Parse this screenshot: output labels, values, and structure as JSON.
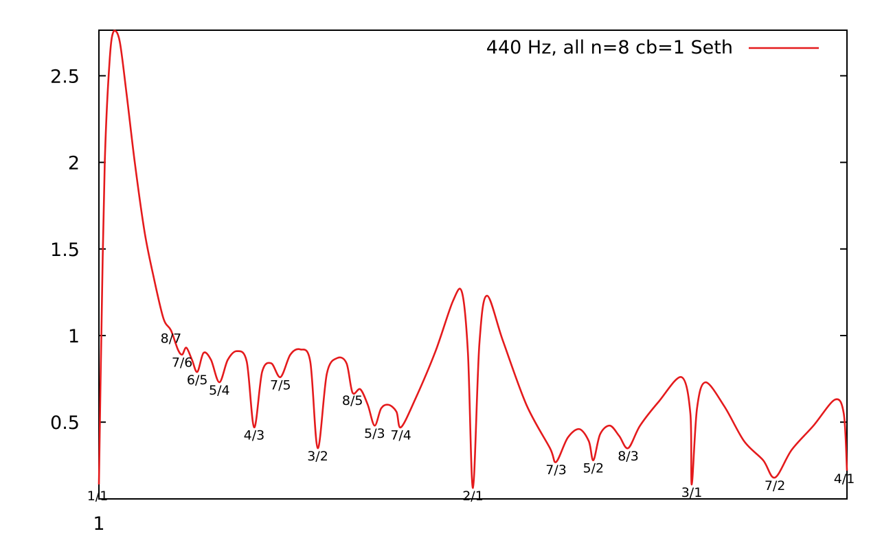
{
  "chart_data": {
    "type": "line",
    "title": "",
    "xlabel": "",
    "ylabel": "",
    "x_scale": "log",
    "xlim": [
      1,
      4
    ],
    "ylim": [
      0.0568,
      2.7632
    ],
    "grid": false,
    "legend_position": "top-right",
    "color": "#e41a1c",
    "x_tick_labels": [
      "1"
    ],
    "y_tick_labels": [
      "0.5",
      "1",
      "1.5",
      "2",
      "2.5"
    ],
    "y_ticks": [
      0.5,
      1,
      1.5,
      2,
      2.5
    ],
    "series": [
      {
        "name": "440 Hz, all n=8 cb=1 Seth",
        "points": [
          [
            1.0,
            0.14
          ],
          [
            1.0045,
            1.0
          ],
          [
            1.0109,
            2.0
          ],
          [
            1.0203,
            2.6
          ],
          [
            1.0282,
            2.76
          ],
          [
            1.0392,
            2.7
          ],
          [
            1.0524,
            2.4
          ],
          [
            1.0687,
            2.0
          ],
          [
            1.0882,
            1.6
          ],
          [
            1.1058,
            1.35
          ],
          [
            1.1269,
            1.1
          ],
          [
            1.1429,
            1.03
          ],
          [
            1.1575,
            0.92
          ],
          [
            1.1667,
            0.89
          ],
          [
            1.1759,
            0.93
          ],
          [
            1.1882,
            0.86
          ],
          [
            1.2,
            0.79
          ],
          [
            1.214,
            0.9
          ],
          [
            1.2308,
            0.86
          ],
          [
            1.25,
            0.73
          ],
          [
            1.2697,
            0.86
          ],
          [
            1.2916,
            0.91
          ],
          [
            1.3151,
            0.85
          ],
          [
            1.3333,
            0.47
          ],
          [
            1.3531,
            0.79
          ],
          [
            1.3762,
            0.84
          ],
          [
            1.4,
            0.76
          ],
          [
            1.4258,
            0.89
          ],
          [
            1.4522,
            0.92
          ],
          [
            1.4794,
            0.85
          ],
          [
            1.5,
            0.35
          ],
          [
            1.5256,
            0.78
          ],
          [
            1.5553,
            0.87
          ],
          [
            1.5823,
            0.84
          ],
          [
            1.6,
            0.67
          ],
          [
            1.6231,
            0.69
          ],
          [
            1.6459,
            0.6
          ],
          [
            1.6667,
            0.48
          ],
          [
            1.6873,
            0.58
          ],
          [
            1.7105,
            0.6
          ],
          [
            1.7357,
            0.56
          ],
          [
            1.75,
            0.47
          ],
          [
            1.7965,
            0.63
          ],
          [
            1.8661,
            0.91
          ],
          [
            1.9274,
            1.2
          ],
          [
            1.9597,
            1.25
          ],
          [
            1.9815,
            0.9
          ],
          [
            2.0,
            0.12
          ],
          [
            2.0239,
            0.95
          ],
          [
            2.0524,
            1.23
          ],
          [
            2.1142,
            0.97
          ],
          [
            2.2084,
            0.6
          ],
          [
            2.3068,
            0.35
          ],
          [
            2.3333,
            0.27
          ],
          [
            2.384,
            0.41
          ],
          [
            2.4358,
            0.46
          ],
          [
            2.4791,
            0.39
          ],
          [
            2.5,
            0.28
          ],
          [
            2.5314,
            0.43
          ],
          [
            2.5775,
            0.48
          ],
          [
            2.6227,
            0.42
          ],
          [
            2.6667,
            0.35
          ],
          [
            2.7261,
            0.48
          ],
          [
            2.8232,
            0.62
          ],
          [
            2.9437,
            0.76
          ],
          [
            2.9924,
            0.55
          ],
          [
            3.0,
            0.14
          ],
          [
            3.0295,
            0.58
          ],
          [
            3.0777,
            0.73
          ],
          [
            3.1876,
            0.59
          ],
          [
            3.3058,
            0.39
          ],
          [
            3.4246,
            0.28
          ],
          [
            3.5,
            0.18
          ],
          [
            3.6105,
            0.34
          ],
          [
            3.7595,
            0.48
          ],
          [
            3.9122,
            0.63
          ],
          [
            3.9762,
            0.55
          ],
          [
            4.0,
            0.22
          ]
        ]
      }
    ],
    "annotations": [
      {
        "text": "1/1",
        "x": 1.0,
        "y": 0.14
      },
      {
        "text": "8/7",
        "x": 1.1429,
        "y": 1.03
      },
      {
        "text": "7/6",
        "x": 1.1667,
        "y": 0.89
      },
      {
        "text": "6/5",
        "x": 1.2,
        "y": 0.79
      },
      {
        "text": "5/4",
        "x": 1.25,
        "y": 0.73
      },
      {
        "text": "4/3",
        "x": 1.3333,
        "y": 0.47
      },
      {
        "text": "7/5",
        "x": 1.4,
        "y": 0.76
      },
      {
        "text": "3/2",
        "x": 1.5,
        "y": 0.35
      },
      {
        "text": "8/5",
        "x": 1.6,
        "y": 0.67
      },
      {
        "text": "5/3",
        "x": 1.6667,
        "y": 0.48
      },
      {
        "text": "7/4",
        "x": 1.75,
        "y": 0.47
      },
      {
        "text": "2/1",
        "x": 2.0,
        "y": 0.12
      },
      {
        "text": "7/3",
        "x": 2.3333,
        "y": 0.27
      },
      {
        "text": "5/2",
        "x": 2.5,
        "y": 0.28
      },
      {
        "text": "8/3",
        "x": 2.6667,
        "y": 0.35
      },
      {
        "text": "3/1",
        "x": 3.0,
        "y": 0.14
      },
      {
        "text": "7/2",
        "x": 3.5,
        "y": 0.18
      },
      {
        "text": "4/1",
        "x": 4.0,
        "y": 0.22
      }
    ]
  }
}
